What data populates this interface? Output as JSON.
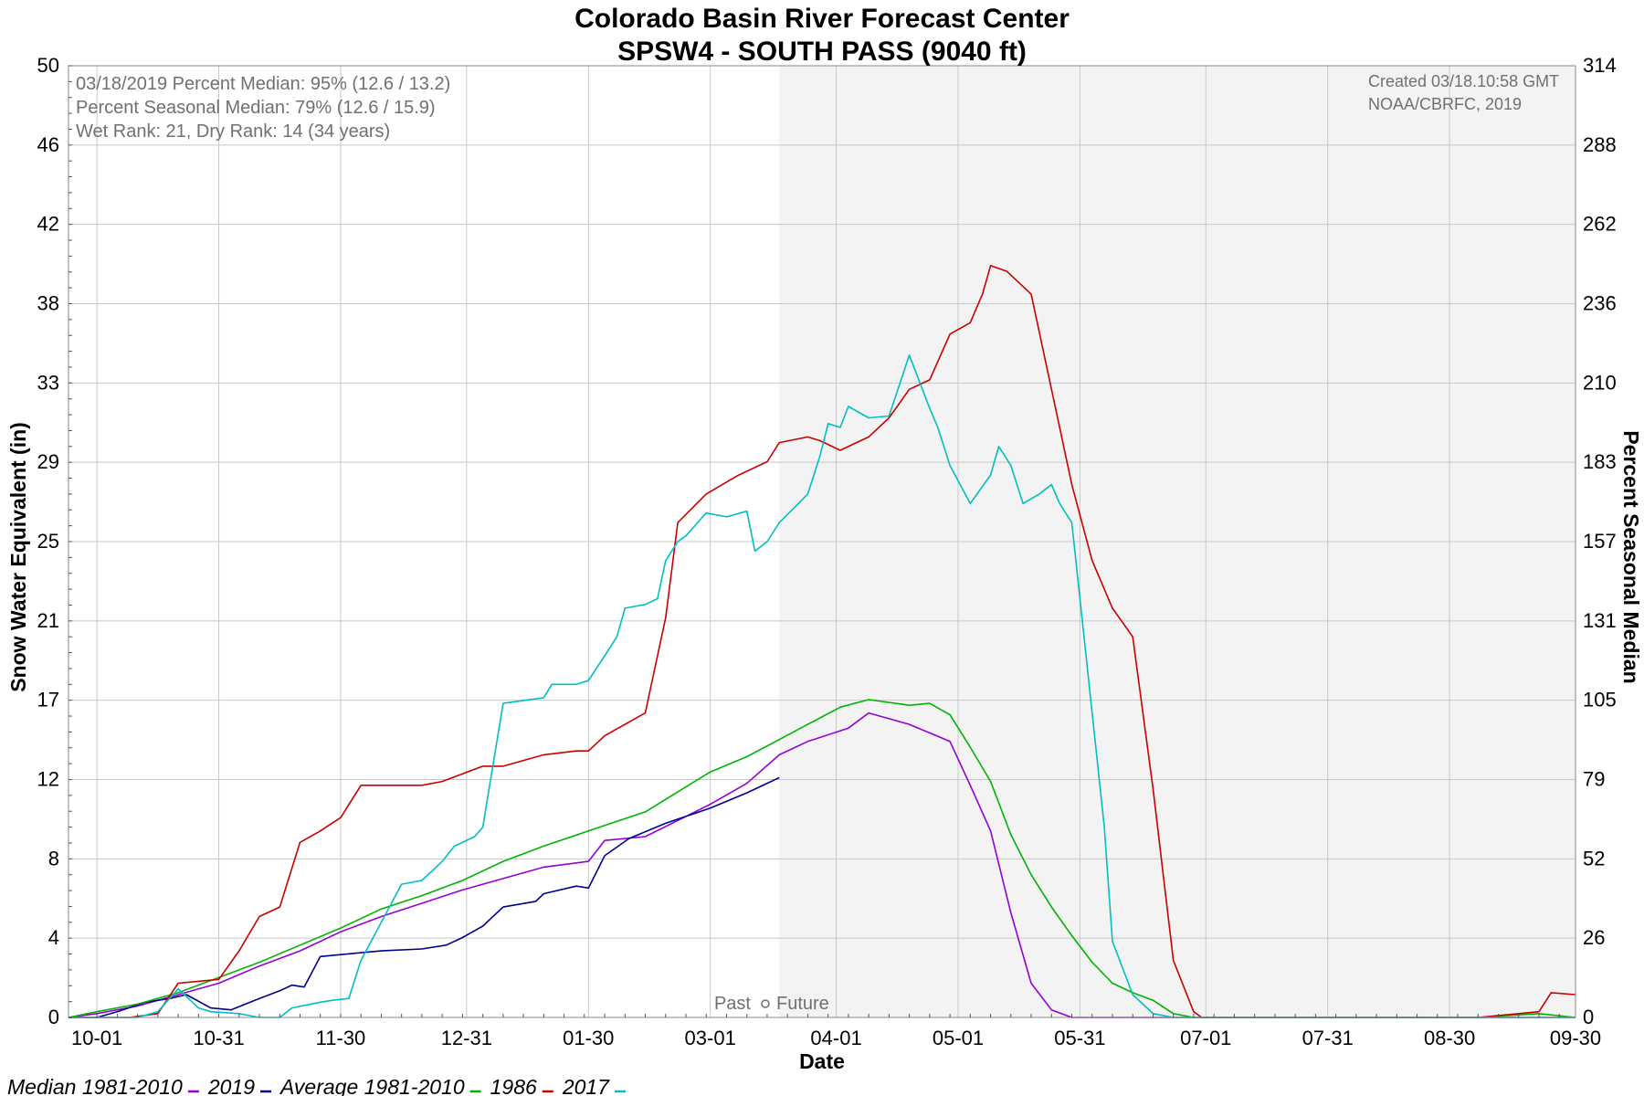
{
  "chart_data": {
    "type": "line",
    "title": "Colorado Basin River Forecast Center",
    "subtitle": "SPSW4 - SOUTH PASS (9040 ft)",
    "xlabel": "Date",
    "ylabel": "Snow Water Equivalent (in)",
    "ylabel_right": "Percent Seasonal Median",
    "x_ticks": [
      "10-01",
      "10-31",
      "11-30",
      "12-31",
      "01-30",
      "03-01",
      "04-01",
      "05-01",
      "05-31",
      "07-01",
      "07-31",
      "08-30",
      "09-30"
    ],
    "x_tick_days": [
      0,
      30,
      60,
      91,
      121,
      151,
      182,
      212,
      242,
      273,
      303,
      333,
      364
    ],
    "x_range_days": [
      -7,
      364
    ],
    "y_ticks": [
      "0",
      "4",
      "8",
      "12",
      "17",
      "21",
      "25",
      "29",
      "33",
      "38",
      "42",
      "46",
      "50"
    ],
    "y_range": [
      0,
      50
    ],
    "y2_ticks": [
      "0",
      "26",
      "52",
      "79",
      "105",
      "131",
      "157",
      "183",
      "210",
      "236",
      "262",
      "288",
      "314"
    ],
    "y2_range": [
      0,
      314
    ],
    "grid": true,
    "past_future_split_day": 168,
    "info_lines": [
      "03/18/2019 Percent Median: 95% (12.6 / 13.2)",
      "Percent Seasonal Median: 79% (12.6 / 15.9)",
      "Wet Rank: 21, Dry Rank: 14  (34 years)"
    ],
    "credit_lines": [
      "Created 03/18.10:58 GMT",
      "NOAA/CBRFC, 2019"
    ],
    "past_label": "Past",
    "future_label": "Future",
    "legend_placement": "bottom-left",
    "series": [
      {
        "name": "Median 1981-2010",
        "color": "#9400d3",
        "x": [
          -7,
          0,
          10,
          20,
          30,
          40,
          50,
          60,
          70,
          80,
          90,
          100,
          110,
          121,
          125,
          135,
          151,
          160,
          168,
          175,
          185,
          190,
          200,
          210,
          215,
          220,
          225,
          230,
          235,
          240,
          248,
          255,
          270,
          290,
          310,
          330,
          350,
          364
        ],
        "y": [
          0,
          0.2,
          0.6,
          1.2,
          1.8,
          2.7,
          3.5,
          4.5,
          5.3,
          6.0,
          6.7,
          7.3,
          7.9,
          8.2,
          9.3,
          9.5,
          11.2,
          12.3,
          13.8,
          14.5,
          15.2,
          16.0,
          15.4,
          14.5,
          12.2,
          9.8,
          5.5,
          1.8,
          0.4,
          0,
          0,
          0,
          0,
          0,
          0,
          0,
          0,
          0
        ]
      },
      {
        "name": "2019",
        "color": "#00008b",
        "x": [
          -7,
          0,
          5,
          12,
          18,
          22,
          28,
          33,
          40,
          45,
          48,
          51,
          55,
          60,
          70,
          80,
          86,
          90,
          95,
          100,
          108,
          110,
          118,
          121,
          125,
          131,
          140,
          151,
          160,
          168
        ],
        "y": [
          0,
          0,
          0.3,
          0.8,
          1.0,
          1.2,
          0.5,
          0.4,
          1.0,
          1.4,
          1.7,
          1.6,
          3.2,
          3.3,
          3.5,
          3.6,
          3.8,
          4.2,
          4.8,
          5.8,
          6.1,
          6.5,
          6.9,
          6.8,
          8.5,
          9.4,
          10.2,
          11.0,
          11.8,
          12.6
        ]
      },
      {
        "name": "Average 1981-2010",
        "color": "#00b300",
        "x": [
          -7,
          0,
          10,
          20,
          30,
          40,
          50,
          60,
          70,
          80,
          90,
          100,
          110,
          121,
          135,
          151,
          160,
          168,
          175,
          183,
          190,
          200,
          205,
          210,
          215,
          220,
          225,
          230,
          235,
          240,
          245,
          250,
          255,
          260,
          265,
          270,
          280,
          300,
          320,
          340,
          355,
          364
        ],
        "y": [
          0,
          0.3,
          0.7,
          1.3,
          2.1,
          2.9,
          3.8,
          4.7,
          5.7,
          6.4,
          7.2,
          8.2,
          9.0,
          9.8,
          10.8,
          12.9,
          13.7,
          14.6,
          15.4,
          16.3,
          16.7,
          16.4,
          16.5,
          15.9,
          14.2,
          12.4,
          9.6,
          7.5,
          5.8,
          4.3,
          2.9,
          1.8,
          1.3,
          0.9,
          0.2,
          0,
          0,
          0,
          0,
          0,
          0.2,
          0
        ]
      },
      {
        "name": "1986",
        "color": "#c80000",
        "x": [
          -7,
          0,
          8,
          15,
          20,
          25,
          30,
          35,
          40,
          45,
          50,
          55,
          60,
          65,
          70,
          75,
          80,
          85,
          90,
          95,
          100,
          110,
          118,
          121,
          125,
          135,
          140,
          143,
          150,
          158,
          165,
          168,
          175,
          178,
          183,
          190,
          195,
          200,
          205,
          210,
          215,
          218,
          220,
          224,
          230,
          235,
          240,
          245,
          250,
          255,
          260,
          265,
          270,
          272,
          275,
          280,
          290,
          300,
          320,
          340,
          355,
          358,
          364
        ],
        "y": [
          0,
          0,
          0,
          0.2,
          1.8,
          1.9,
          2.0,
          3.5,
          5.3,
          5.8,
          9.2,
          9.8,
          10.5,
          12.2,
          12.2,
          12.2,
          12.2,
          12.4,
          12.8,
          13.2,
          13.2,
          13.8,
          14.0,
          14.0,
          14.8,
          16.0,
          21.0,
          26.0,
          27.5,
          28.5,
          29.2,
          30.2,
          30.5,
          30.3,
          29.8,
          30.5,
          31.5,
          33.0,
          33.5,
          35.9,
          36.5,
          38.0,
          39.5,
          39.2,
          38.0,
          33.0,
          28.0,
          24.0,
          21.5,
          20.0,
          12.0,
          3.0,
          0.3,
          0,
          0,
          0,
          0,
          0,
          0,
          0,
          0.3,
          1.3,
          1.2
        ]
      },
      {
        "name": "2017",
        "color": "#00bfbf",
        "x": [
          -7,
          0,
          10,
          15,
          20,
          25,
          28,
          35,
          40,
          45,
          48,
          55,
          58,
          62,
          65,
          70,
          75,
          80,
          85,
          88,
          90,
          93,
          95,
          100,
          110,
          112,
          118,
          121,
          125,
          128,
          130,
          135,
          138,
          140,
          143,
          145,
          150,
          155,
          160,
          162,
          165,
          168,
          175,
          178,
          180,
          183,
          185,
          190,
          195,
          200,
          205,
          207,
          210,
          215,
          220,
          222,
          225,
          228,
          232,
          235,
          237,
          240,
          243,
          248,
          250,
          255,
          260,
          265,
          270,
          280,
          300,
          320,
          340,
          364
        ],
        "y": [
          0,
          0,
          0,
          0.3,
          1.5,
          0.5,
          0.3,
          0.2,
          0,
          0,
          0.5,
          0.8,
          0.9,
          1.0,
          3.0,
          5.0,
          7.0,
          7.2,
          8.2,
          9.0,
          9.2,
          9.5,
          10.0,
          16.5,
          16.8,
          17.5,
          17.5,
          17.7,
          19.0,
          20.0,
          21.5,
          21.7,
          22.0,
          24.0,
          25.0,
          25.3,
          26.5,
          26.3,
          26.6,
          24.5,
          25.0,
          26.0,
          27.5,
          29.5,
          31.2,
          31.0,
          32.1,
          31.5,
          31.6,
          34.8,
          32.0,
          31.0,
          29.0,
          27.0,
          28.5,
          30.0,
          29.0,
          27.0,
          27.5,
          28.0,
          27.0,
          26.0,
          20.0,
          10.0,
          4.0,
          1.2,
          0.2,
          0,
          0,
          0,
          0,
          0,
          0,
          0
        ]
      }
    ]
  }
}
